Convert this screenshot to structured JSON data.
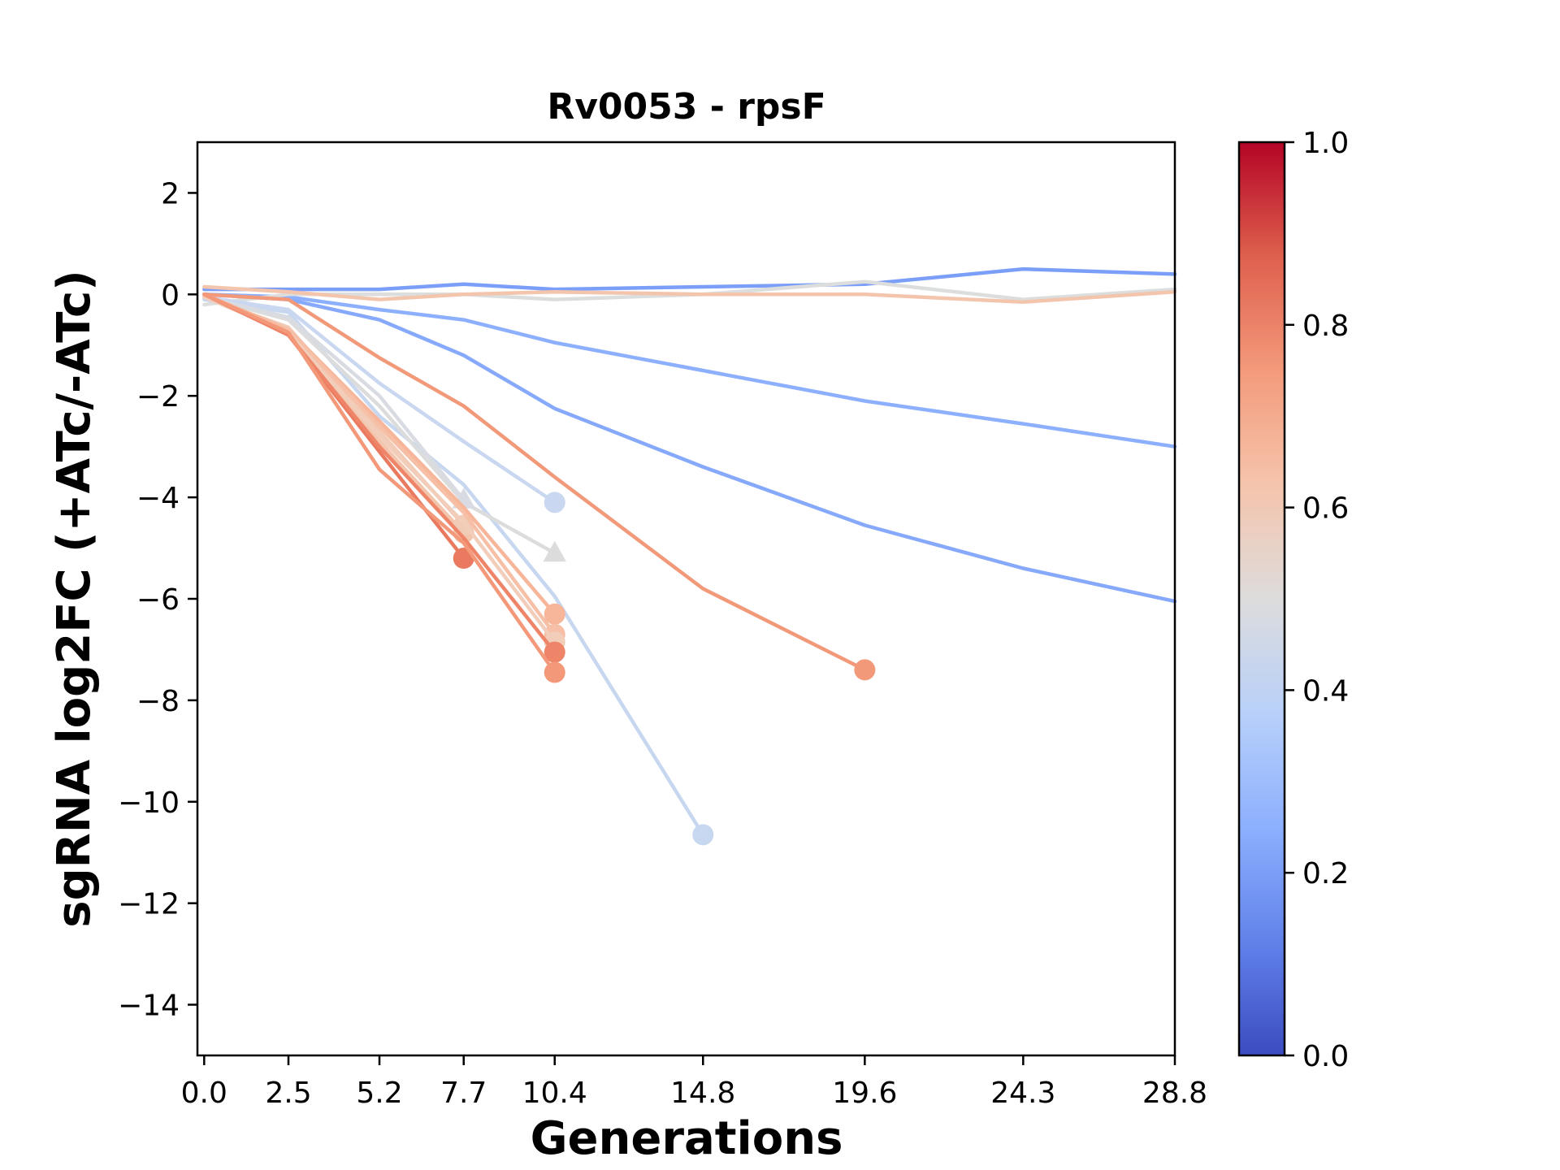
{
  "chart_data": {
    "type": "line",
    "title": "Rv0053 - rpsF",
    "xlabel": "Generations",
    "ylabel": "sgRNA log2FC (+ATc/-ATc)",
    "x_ticks": [
      0.0,
      2.5,
      5.2,
      7.7,
      10.4,
      14.8,
      19.6,
      24.3,
      28.8
    ],
    "x_tick_labels": [
      "0.0",
      "2.5",
      "5.2",
      "7.7",
      "10.4",
      "14.8",
      "19.6",
      "24.3",
      "28.8"
    ],
    "y_ticks": [
      2,
      0,
      -2,
      -4,
      -6,
      -8,
      -10,
      -12,
      -14
    ],
    "y_tick_labels": [
      "2",
      "0",
      "−2",
      "−4",
      "−6",
      "−8",
      "−10",
      "−12",
      "−14"
    ],
    "xlim": [
      -0.2,
      28.8
    ],
    "ylim": [
      -15,
      3
    ],
    "grid": false,
    "colorbar": {
      "colormap": "coolwarm",
      "range": [
        0,
        1
      ],
      "ticks": [
        0.0,
        0.2,
        0.4,
        0.6,
        0.8,
        1.0
      ],
      "tick_labels": [
        "0.0",
        "0.2",
        "0.4",
        "0.6",
        "0.8",
        "1.0"
      ],
      "stops": [
        "#3b4cc0",
        "#6282ea",
        "#8db0fe",
        "#b8d0f9",
        "#dddcdc",
        "#f5c4ac",
        "#f49a7b",
        "#de604d",
        "#b40426"
      ]
    },
    "series": [
      {
        "color": "#7b9ff9",
        "x": [
          0.0,
          2.5,
          5.2,
          7.7,
          10.4,
          14.8,
          19.6,
          24.3,
          28.8
        ],
        "y": [
          0.1,
          0.1,
          0.1,
          0.2,
          0.1,
          0.15,
          0.2,
          0.5,
          0.4
        ],
        "marker": null
      },
      {
        "color": "#86a9fc",
        "x": [
          0.0,
          2.5,
          5.2,
          7.7,
          10.4,
          14.8,
          19.6,
          24.3,
          28.8
        ],
        "y": [
          0.0,
          -0.1,
          -0.5,
          -1.2,
          -2.25,
          -3.4,
          -4.55,
          -5.4,
          -6.05
        ],
        "marker": null
      },
      {
        "color": "#8db0fe",
        "x": [
          0.0,
          2.5,
          5.2,
          7.7,
          10.4,
          14.8,
          19.6,
          24.3,
          28.8
        ],
        "y": [
          0.0,
          -0.05,
          -0.3,
          -0.5,
          -0.95,
          -1.5,
          -2.1,
          -2.55,
          -3.0
        ],
        "marker": null
      },
      {
        "color": "#dcdddd",
        "x": [
          0.0,
          2.5,
          5.2,
          7.7,
          10.4,
          14.8,
          19.6,
          24.3,
          28.8
        ],
        "y": [
          -0.2,
          0.0,
          0.0,
          0.0,
          -0.1,
          0.0,
          0.25,
          -0.1,
          0.1
        ],
        "marker": null
      },
      {
        "color": "#f4c5ad",
        "x": [
          0.0,
          2.5,
          5.2,
          7.7,
          10.4,
          14.8,
          19.6,
          24.3,
          28.8
        ],
        "y": [
          0.15,
          0.05,
          -0.1,
          0.0,
          0.05,
          0.0,
          0.0,
          -0.15,
          0.05
        ],
        "marker": null
      },
      {
        "color": "#c7d7f0",
        "x": [
          0.0,
          2.5,
          5.2,
          7.7,
          10.4,
          14.8
        ],
        "y": [
          -0.1,
          -0.35,
          -2.4,
          -3.75,
          -5.95,
          -10.65
        ],
        "marker": "circle"
      },
      {
        "color": "#c9d7f0",
        "x": [
          0.0,
          2.5,
          5.2,
          7.7,
          10.4
        ],
        "y": [
          -0.05,
          -0.3,
          -1.75,
          -2.9,
          -4.1
        ],
        "marker": "circle"
      },
      {
        "color": "#dddcdc",
        "x": [
          0.0,
          2.5,
          5.2,
          7.7,
          10.4
        ],
        "y": [
          -0.05,
          -0.5,
          -2.2,
          -4.1,
          -5.1
        ],
        "marker": "triangle"
      },
      {
        "color": "#d8dce2",
        "x": [
          0.0,
          2.5,
          5.2,
          7.7
        ],
        "y": [
          -0.05,
          -0.45,
          -2.0,
          -4.05
        ],
        "marker": "triangle"
      },
      {
        "color": "#f2997a",
        "x": [
          0.0,
          2.5,
          5.2,
          7.7,
          10.4,
          14.8,
          19.6
        ],
        "y": [
          0.0,
          -0.1,
          -1.25,
          -2.2,
          -3.6,
          -5.8,
          -7.4
        ],
        "marker": "circle"
      },
      {
        "color": "#f4c5ad",
        "x": [
          0.0,
          2.5,
          5.2,
          7.7
        ],
        "y": [
          -0.05,
          -0.7,
          -2.9,
          -4.7
        ],
        "marker": "circle"
      },
      {
        "color": "#f2cbb7",
        "x": [
          0.0,
          2.5,
          5.2,
          7.7
        ],
        "y": [
          -0.05,
          -0.65,
          -2.7,
          -4.55
        ],
        "marker": "circle"
      },
      {
        "color": "#e97a5f",
        "x": [
          0.0,
          2.5,
          5.2,
          7.7
        ],
        "y": [
          0.0,
          -0.8,
          -3.1,
          -5.2
        ],
        "marker": "circle"
      },
      {
        "color": "#f7b599",
        "x": [
          0.0,
          2.5,
          5.2,
          7.7,
          10.4
        ],
        "y": [
          0.0,
          -0.7,
          -2.5,
          -4.2,
          -6.3
        ],
        "marker": "circle"
      },
      {
        "color": "#f6bfa6",
        "x": [
          0.0,
          2.5,
          5.2,
          7.7,
          10.4
        ],
        "y": [
          -0.05,
          -0.7,
          -2.6,
          -4.3,
          -6.7
        ],
        "marker": "circle"
      },
      {
        "color": "#f1cdba",
        "x": [
          0.0,
          2.5,
          5.2,
          7.7,
          10.4
        ],
        "y": [
          -0.05,
          -0.75,
          -2.8,
          -4.5,
          -6.85
        ],
        "marker": "circle"
      },
      {
        "color": "#ee8468",
        "x": [
          0.0,
          2.5,
          5.2,
          7.7,
          10.4
        ],
        "y": [
          0.0,
          -0.8,
          -3.0,
          -4.8,
          -7.05
        ],
        "marker": "circle"
      },
      {
        "color": "#f4987a",
        "x": [
          0.0,
          2.5,
          5.2,
          7.7,
          10.4
        ],
        "y": [
          0.0,
          -0.75,
          -3.45,
          -4.9,
          -7.45
        ],
        "marker": "circle"
      }
    ]
  }
}
